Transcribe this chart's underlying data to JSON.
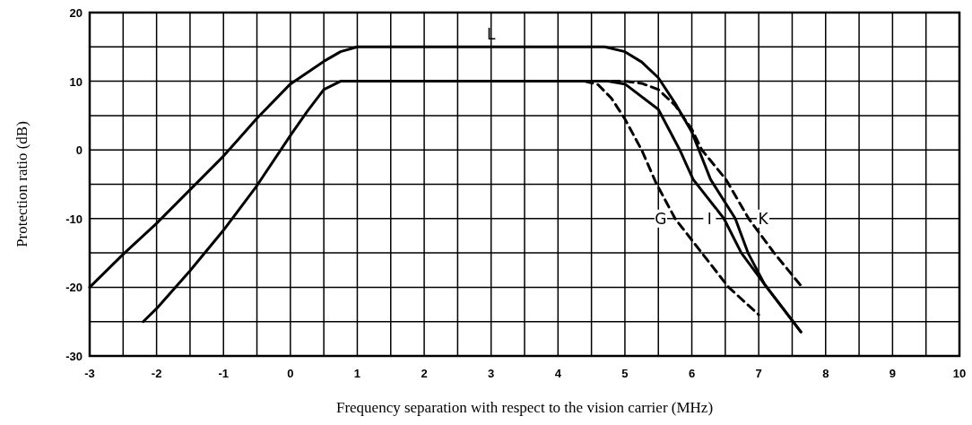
{
  "chart_data": {
    "type": "line",
    "xlabel": "Frequency separation with respect to the vision carrier (MHz)",
    "ylabel": "Protection ratio (dB)",
    "xlim": [
      -3,
      10
    ],
    "ylim": [
      -30,
      20
    ],
    "xticks": [
      -3,
      {
        "value": -2.5,
        "label": null
      },
      -2,
      {
        "value": -1.5,
        "label": null
      },
      -1,
      {
        "value": -0.5,
        "label": null
      },
      0,
      {
        "value": 0.5,
        "label": null
      },
      1,
      {
        "value": 1.5,
        "label": null
      },
      2,
      {
        "value": 2.5,
        "label": null
      },
      3,
      {
        "value": 3.5,
        "label": null
      },
      4,
      {
        "value": 4.5,
        "label": null
      },
      5,
      {
        "value": 5.5,
        "label": null
      },
      6,
      {
        "value": 6.5,
        "label": null
      },
      7,
      {
        "value": 7.5,
        "label": null
      },
      8,
      {
        "value": 8.5,
        "label": null
      },
      9,
      {
        "value": 9.5,
        "label": null
      },
      10
    ],
    "yticks": [
      -30,
      {
        "value": -25,
        "label": null
      },
      -20,
      {
        "value": -15,
        "label": null
      },
      -10,
      {
        "value": -5,
        "label": null
      },
      0,
      {
        "value": 5,
        "label": null
      },
      10,
      {
        "value": 15,
        "label": null
      },
      20
    ],
    "grid": true,
    "marker": "none",
    "series": [
      {
        "name": "L",
        "color": "#000000",
        "line_style": "solid",
        "x": [
          -3,
          -2.5,
          -2,
          -1.5,
          -1,
          -0.5,
          0,
          0.5,
          0.75,
          1,
          3,
          4.7,
          5,
          5.25,
          5.5,
          5.75,
          6,
          6.28,
          6.65,
          6.84,
          7.09,
          7.63
        ],
        "values": [
          -20,
          -15.2,
          -10.7,
          -5.8,
          -0.9,
          4.6,
          9.6,
          12.9,
          14.3,
          15,
          15,
          15,
          14.3,
          12.8,
          10.5,
          6.8,
          2.6,
          -4.3,
          -10,
          -15,
          -19.6,
          -26.5
        ]
      },
      {
        "name": "G",
        "color": "#000000",
        "line_style": "dashed",
        "x": [
          4.4,
          4.6,
          4.8,
          5,
          5.25,
          5.46,
          5.75,
          6.15,
          6.55,
          7
        ],
        "values": [
          10,
          9.5,
          7.5,
          4.5,
          0,
          -4.7,
          -10,
          -15,
          -20,
          -24
        ]
      },
      {
        "name": "I",
        "color": "#000000",
        "line_style": "solid",
        "x": [
          -2.2,
          -2,
          -1.5,
          -1,
          -0.5,
          0,
          0.25,
          0.5,
          0.75,
          4.4,
          4.75,
          5,
          5.5,
          5.82,
          6.02,
          6.48,
          6.74,
          7.09,
          7.63
        ],
        "values": [
          -25,
          -23.1,
          -17.6,
          -11.7,
          -5.2,
          2.1,
          5.6,
          8.8,
          10,
          10,
          10,
          9.6,
          5.9,
          0,
          -4.3,
          -10,
          -15,
          -19.6,
          -26.5
        ]
      },
      {
        "name": "K",
        "color": "#000000",
        "line_style": "dashed",
        "x": [
          4.4,
          5,
          5.25,
          5.5,
          5.75,
          6,
          6.15,
          6.51,
          6.85,
          7.23,
          7.65
        ],
        "values": [
          10,
          10,
          9.7,
          8.8,
          6.5,
          3,
          0,
          -4.3,
          -10,
          -15,
          -20
        ]
      }
    ]
  }
}
